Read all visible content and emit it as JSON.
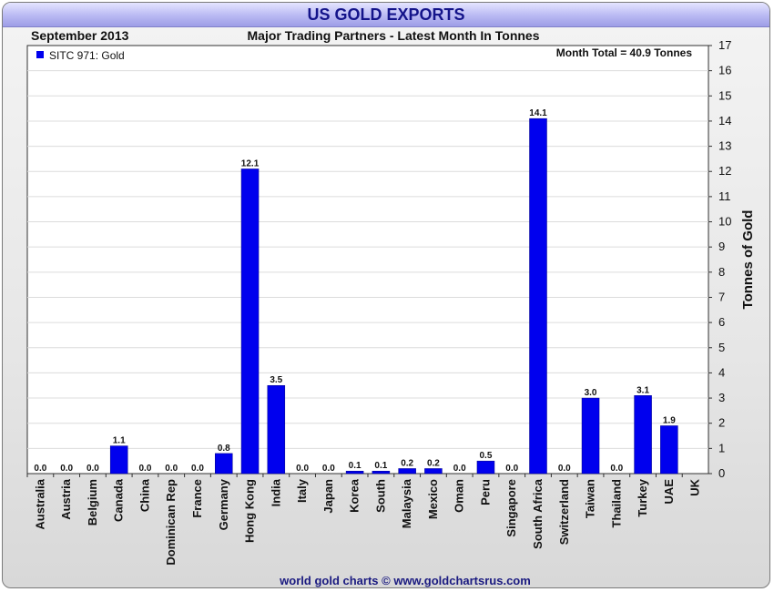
{
  "chart_data": {
    "type": "bar",
    "title": "US GOLD EXPORTS",
    "subtitle": "Major Trading Partners - Latest Month In Tonnes",
    "period": "September 2013",
    "legend": "SITC 971: Gold",
    "annotation": "Month Total = 40.9 Tonnes",
    "ylabel": "Tonnes of Gold",
    "xlabel": "",
    "ylim": [
      0,
      17
    ],
    "yticks": [
      "0",
      "1",
      "2",
      "3",
      "4",
      "5",
      "6",
      "7",
      "8",
      "9",
      "10",
      "11",
      "12",
      "13",
      "14",
      "15",
      "16",
      "17"
    ],
    "footer": "world gold charts © www.goldchartsrus.com",
    "categories": [
      "Australia",
      "Austria",
      "Belgium",
      "Canada",
      "China",
      "Dominican Rep",
      "France",
      "Germany",
      "Hong Kong",
      "India",
      "Italy",
      "Japan",
      "Korea",
      "South",
      "Malaysia",
      "Mexico",
      "Oman",
      "Peru",
      "Singapore",
      "South Africa",
      "Switzerland",
      "Taiwan",
      "Thailand",
      "Turkey",
      "UAE",
      "UK"
    ],
    "values": [
      0.0,
      0.0,
      0.0,
      1.1,
      0.0,
      0.0,
      0.0,
      0.8,
      12.1,
      3.5,
      0.0,
      0.0,
      0.1,
      0.1,
      0.2,
      0.2,
      0.0,
      0.5,
      0.0,
      14.1,
      0.0,
      3.0,
      0.0,
      3.1,
      1.9,
      null
    ],
    "labels": [
      "0.0",
      "0.0",
      "0.0",
      "1.1",
      "0.0",
      "0.0",
      "0.0",
      "0.8",
      "12.1",
      "3.5",
      "0.0",
      "0.0",
      "0.1",
      "0.1",
      "0.2",
      "0.2",
      "0.0",
      "0.5",
      "0.0",
      "14.1",
      "0.0",
      "3.0",
      "0.0",
      "3.1",
      "1.9",
      ""
    ],
    "colors": {
      "bar": "#0000ee",
      "title": "#14148a",
      "footer": "#1a1a80"
    }
  }
}
